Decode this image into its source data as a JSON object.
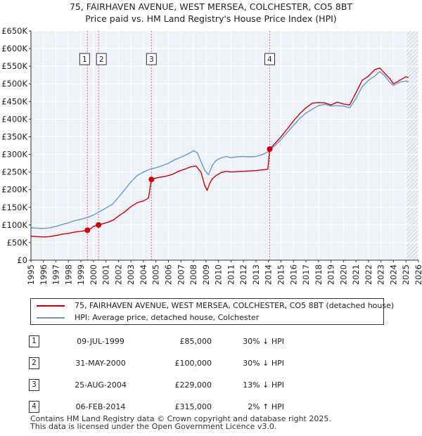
{
  "title_line1": "75, FAIRHAVEN AVENUE, WEST MERSEA, COLCHESTER, CO5 8BT",
  "title_line2": "Price paid vs. HM Land Registry's House Price Index (HPI)",
  "chart_data": {
    "type": "line",
    "xlim": [
      1995,
      2026
    ],
    "ylim": [
      0,
      650000
    ],
    "yticks": [
      0,
      50000,
      100000,
      150000,
      200000,
      250000,
      300000,
      350000,
      400000,
      450000,
      500000,
      550000,
      600000,
      650000
    ],
    "ytick_labels": [
      "£0",
      "£50K",
      "£100K",
      "£150K",
      "£200K",
      "£250K",
      "£300K",
      "£350K",
      "£400K",
      "£450K",
      "£500K",
      "£550K",
      "£600K",
      "£650K"
    ],
    "xticks": [
      1995,
      1996,
      1997,
      1998,
      1999,
      2000,
      2001,
      2002,
      2003,
      2004,
      2005,
      2006,
      2007,
      2008,
      2009,
      2010,
      2011,
      2012,
      2013,
      2014,
      2015,
      2016,
      2017,
      2018,
      2019,
      2020,
      2021,
      2022,
      2023,
      2024,
      2025,
      2026
    ],
    "xtick_labels": [
      "1995",
      "1996",
      "1997",
      "1998",
      "1999",
      "2000",
      "2001",
      "2002",
      "2003",
      "2004",
      "2005",
      "2006",
      "2007",
      "2008",
      "2009",
      "2010",
      "2011",
      "2012",
      "2013",
      "2014",
      "2015",
      "2016",
      "2017",
      "2018",
      "2019",
      "2020",
      "2021",
      "2022",
      "2023",
      "2024",
      "2025",
      "2026"
    ],
    "grid": true,
    "hatched_from": 2025.0,
    "series": [
      {
        "name": "75, FAIRHAVEN AVENUE, WEST MERSEA, COLCHESTER, CO5 8BT (detached house)",
        "color": "#cc0000",
        "x": [
          1995.0,
          1995.5,
          1996.0,
          1996.5,
          1997.0,
          1997.5,
          1998.0,
          1998.5,
          1999.0,
          1999.52,
          1999.8,
          2000.0,
          2000.41,
          2000.8,
          2001.2,
          2001.6,
          2002.0,
          2002.5,
          2003.0,
          2003.5,
          2004.0,
          2004.4,
          2004.64,
          2004.9,
          2005.3,
          2005.8,
          2006.3,
          2006.8,
          2007.3,
          2007.8,
          2008.2,
          2008.6,
          2008.9,
          2009.1,
          2009.3,
          2009.5,
          2009.8,
          2010.2,
          2010.6,
          2011.0,
          2011.5,
          2012.0,
          2012.5,
          2013.0,
          2013.5,
          2013.95,
          2014.1,
          2014.5,
          2015.0,
          2015.5,
          2016.0,
          2016.5,
          2017.0,
          2017.5,
          2018.0,
          2018.5,
          2019.0,
          2019.5,
          2020.0,
          2020.5,
          2021.0,
          2021.5,
          2022.0,
          2022.5,
          2022.9,
          2023.3,
          2023.7,
          2024.0,
          2024.5,
          2025.0,
          2025.2
        ],
        "y": [
          68000,
          67000,
          66000,
          67000,
          70000,
          74000,
          76000,
          80000,
          82000,
          85000,
          90000,
          96000,
          100000,
          104000,
          108000,
          114000,
          125000,
          137000,
          152000,
          163000,
          168000,
          176000,
          229000,
          232000,
          235000,
          238000,
          243000,
          252000,
          258000,
          265000,
          267000,
          250000,
          212000,
          198000,
          218000,
          230000,
          240000,
          248000,
          252000,
          250000,
          251000,
          252000,
          253000,
          254000,
          256000,
          258000,
          315000,
          330000,
          350000,
          372000,
          395000,
          415000,
          432000,
          445000,
          447000,
          446000,
          440000,
          448000,
          443000,
          440000,
          475000,
          510000,
          522000,
          540000,
          545000,
          530000,
          515000,
          500000,
          510000,
          520000,
          518000
        ]
      },
      {
        "name": "HPI: Average price, detached house, Colchester",
        "color": "#6699cc",
        "x": [
          1995.0,
          1995.5,
          1996.0,
          1996.5,
          1997.0,
          1997.5,
          1998.0,
          1998.5,
          1999.0,
          1999.5,
          2000.0,
          2000.5,
          2001.0,
          2001.5,
          2002.0,
          2002.5,
          2003.0,
          2003.5,
          2004.0,
          2004.5,
          2005.0,
          2005.5,
          2006.0,
          2006.5,
          2007.0,
          2007.5,
          2008.0,
          2008.3,
          2008.6,
          2008.9,
          2009.2,
          2009.5,
          2009.8,
          2010.2,
          2010.6,
          2011.0,
          2011.5,
          2012.0,
          2012.5,
          2013.0,
          2013.5,
          2014.0,
          2014.5,
          2015.0,
          2015.5,
          2016.0,
          2016.5,
          2017.0,
          2017.5,
          2018.0,
          2018.5,
          2019.0,
          2019.5,
          2020.0,
          2020.5,
          2021.0,
          2021.5,
          2022.0,
          2022.5,
          2022.9,
          2023.3,
          2023.7,
          2024.0,
          2024.5,
          2025.0,
          2025.2
        ],
        "y": [
          92000,
          91000,
          90000,
          92000,
          96000,
          101000,
          106000,
          112000,
          116000,
          121000,
          128000,
          138000,
          148000,
          158000,
          178000,
          200000,
          222000,
          240000,
          250000,
          258000,
          262000,
          268000,
          275000,
          285000,
          292000,
          300000,
          310000,
          305000,
          280000,
          255000,
          242000,
          268000,
          283000,
          290000,
          294000,
          291000,
          293000,
          294000,
          293000,
          294000,
          299000,
          308000,
          324000,
          342000,
          362000,
          382000,
          402000,
          417000,
          428000,
          438000,
          442000,
          437000,
          438000,
          437000,
          432000,
          458000,
          492000,
          510000,
          522000,
          535000,
          523000,
          505000,
          495000,
          505000,
          508000,
          505000
        ]
      }
    ],
    "sales": [
      {
        "n": "1",
        "x": 1999.52,
        "y": 85000
      },
      {
        "n": "2",
        "x": 2000.41,
        "y": 100000
      },
      {
        "n": "3",
        "x": 2004.64,
        "y": 229000
      },
      {
        "n": "4",
        "x": 2014.1,
        "y": 315000
      }
    ]
  },
  "legend": {
    "items": [
      {
        "label": "75, FAIRHAVEN AVENUE, WEST MERSEA, COLCHESTER, CO5 8BT (detached house)",
        "color": "#cc0000"
      },
      {
        "label": "HPI: Average price, detached house, Colchester",
        "color": "#6699cc"
      }
    ]
  },
  "table": {
    "rows": [
      {
        "n": "1",
        "date": "09-JUL-1999",
        "price": "£85,000",
        "hpi": "30% ↓ HPI"
      },
      {
        "n": "2",
        "date": "31-MAY-2000",
        "price": "£100,000",
        "hpi": "30% ↓ HPI"
      },
      {
        "n": "3",
        "date": "25-AUG-2004",
        "price": "£229,000",
        "hpi": "13% ↓ HPI"
      },
      {
        "n": "4",
        "date": "06-FEB-2014",
        "price": "£315,000",
        "hpi": "2% ↑ HPI"
      }
    ]
  },
  "footer": {
    "line1": "Contains HM Land Registry data © Crown copyright and database right 2025.",
    "line2": "This data is licensed under the Open Government Licence v3.0."
  }
}
